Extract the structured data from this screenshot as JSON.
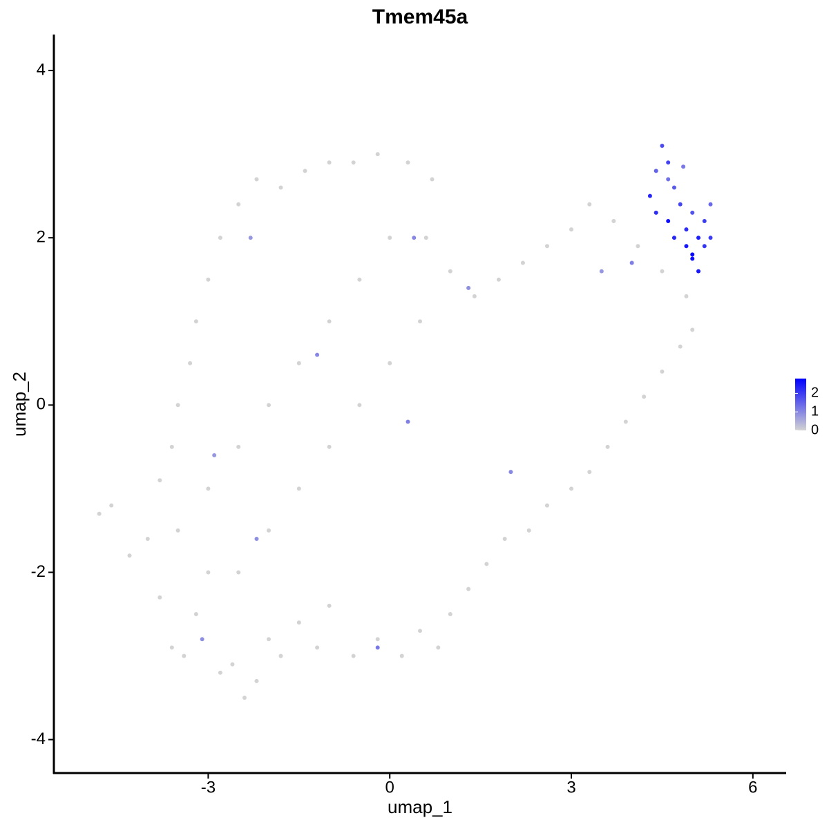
{
  "chart_data": {
    "type": "scatter",
    "title": "Tmem45a",
    "x_label": "umap_1",
    "y_label": "umap_2",
    "xlim": [
      -5.55,
      6.55
    ],
    "ylim": [
      -4.4,
      4.43
    ],
    "xticks": [
      -3,
      0,
      3,
      6
    ],
    "yticks": [
      -4,
      -2,
      0,
      2,
      4
    ],
    "color_low": "#d3d3d3",
    "color_high": "#0000ff",
    "color_lim": [
      0,
      2.8
    ],
    "color_ticks": [
      0,
      1,
      2
    ],
    "series": [
      {
        "x": [
          -4.8,
          -4.6,
          -4.3,
          -4.0,
          -3.8,
          -3.6,
          -3.4,
          -3.2,
          -3.0,
          -2.8,
          -2.6,
          -2.4,
          -2.2,
          -2.0,
          -1.8,
          -1.5,
          -1.2,
          -1.0,
          -0.6,
          -0.2,
          0.2,
          0.5,
          0.8,
          1.0,
          1.3,
          1.6,
          1.9,
          2.3,
          2.6,
          3.0,
          3.3,
          3.6,
          3.9,
          4.2,
          4.5,
          4.8,
          5.0,
          4.9,
          4.5,
          4.1,
          3.7,
          3.3,
          3.0,
          2.6,
          2.2,
          1.8,
          1.4,
          1.0,
          0.6,
          0.7,
          0.3,
          -0.2,
          -0.6,
          -1.0,
          -1.4,
          -1.8,
          -2.2,
          -2.5,
          -2.8,
          -3.0,
          -3.2,
          -3.3,
          -3.5,
          -3.6,
          -3.8,
          -3.5,
          -3.0,
          -2.5,
          -2.0,
          -1.5,
          -1.0,
          -0.5,
          0,
          0.5,
          0.0,
          -0.5,
          -1.0,
          -1.5,
          -2.0,
          -2.5,
          -2.3,
          -1.2,
          0.3,
          1.3,
          -3.1,
          -0.2,
          2.0,
          -2.2,
          3.5,
          4.0,
          0.4,
          -2.9,
          4.5,
          4.4,
          4.6,
          4.3,
          4.7,
          4.8,
          5.0,
          4.6,
          4.9,
          5.1,
          4.9,
          5.0,
          5.2,
          5.3,
          5.1,
          4.7,
          5.2,
          5.3,
          4.4,
          4.6,
          4.85,
          5.0
        ],
        "y": [
          -1.3,
          -1.2,
          -1.8,
          -1.6,
          -2.3,
          -2.9,
          -3.0,
          -2.5,
          -2.0,
          -3.2,
          -3.1,
          -3.5,
          -3.3,
          -2.8,
          -3.0,
          -2.6,
          -2.9,
          -2.4,
          -3.0,
          -2.8,
          -3.0,
          -2.7,
          -2.9,
          -2.5,
          -2.2,
          -1.9,
          -1.6,
          -1.5,
          -1.2,
          -1.0,
          -0.8,
          -0.5,
          -0.2,
          0.1,
          0.4,
          0.7,
          0.9,
          1.3,
          1.6,
          1.9,
          2.2,
          2.4,
          2.1,
          1.9,
          1.7,
          1.5,
          1.3,
          1.6,
          2.0,
          2.7,
          2.9,
          3.0,
          2.9,
          2.9,
          2.8,
          2.6,
          2.7,
          2.4,
          2.0,
          1.5,
          1.0,
          0.5,
          0.0,
          -0.5,
          -0.9,
          -1.5,
          -1.0,
          -0.5,
          0.0,
          0.5,
          1.0,
          1.5,
          2.0,
          1.0,
          0.5,
          0.0,
          -0.5,
          -1.0,
          -1.5,
          -2.0,
          2.0,
          0.6,
          -0.2,
          1.4,
          -2.8,
          -2.9,
          -0.8,
          -1.6,
          1.6,
          1.7,
          2.0,
          -0.6,
          3.1,
          2.8,
          2.9,
          2.5,
          2.6,
          2.4,
          2.3,
          2.2,
          2.1,
          2.0,
          1.9,
          1.8,
          1.9,
          2.0,
          1.6,
          2.0,
          2.2,
          2.4,
          2.3,
          2.7,
          2.85,
          1.75
        ],
        "values": [
          0,
          0,
          0,
          0,
          0,
          0,
          0,
          0,
          0,
          0,
          0,
          0,
          0,
          0,
          0,
          0,
          0,
          0,
          0,
          0,
          0,
          0,
          0,
          0,
          0,
          0,
          0,
          0,
          0,
          0,
          0,
          0,
          0,
          0,
          0,
          0,
          0,
          0,
          0,
          0,
          0,
          0,
          0,
          0,
          0,
          0,
          0,
          0,
          0,
          0,
          0,
          0,
          0,
          0,
          0,
          0,
          0,
          0,
          0,
          0,
          0,
          0,
          0,
          0,
          0,
          0,
          0,
          0,
          0,
          0,
          0,
          0,
          0,
          0,
          0,
          0,
          0,
          0,
          0,
          0,
          0.8,
          1.0,
          1.1,
          0.9,
          0.9,
          1.2,
          1.0,
          0.9,
          0.8,
          1.1,
          1.0,
          0.8,
          1.8,
          1.5,
          1.9,
          2.3,
          1.6,
          1.9,
          1.7,
          2.6,
          2.2,
          2.4,
          2.5,
          2.7,
          2.1,
          2.0,
          2.5,
          2.3,
          2.0,
          1.4,
          2.2,
          1.3,
          1.2,
          2.6
        ]
      }
    ]
  }
}
